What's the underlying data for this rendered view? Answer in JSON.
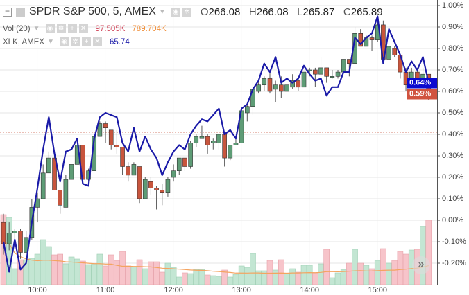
{
  "legend": {
    "symbol_title": "SPDR S&P 500, 5, AMEX",
    "open_label": "O",
    "open": "266.08",
    "high_label": "H",
    "high": "266.08",
    "low_label": "L",
    "low": "265.87",
    "close_label": "C",
    "close": "265.89",
    "volume_title": "Vol (20)",
    "volume_value": "97.505K",
    "volume_ma_value": "789.704K",
    "compare_title": "XLK, AMEX",
    "compare_value": "65.74"
  },
  "price_tags": {
    "compare": "0.64%",
    "main": "0.59%"
  },
  "colors": {
    "up": "#5e9c76",
    "down": "#c8553d",
    "vol_up": "#c3e6d3",
    "vol_down": "#f7c4ca",
    "compare": "#1a1aa8",
    "vol_ma": "#f4a460",
    "compare_tag": "#0a0ad0",
    "main_tag": "#d0533f",
    "prev_close": "#c8553d"
  },
  "chart_data": {
    "type": "candlestick",
    "yaxis_ticks": [
      "1.00%",
      "0.90%",
      "0.80%",
      "0.70%",
      "0.60%",
      "0.50%",
      "0.40%",
      "0.30%",
      "0.20%",
      "0.10%",
      "0.00%",
      "-0.10%",
      "-0.20%"
    ],
    "yaxis_tick_values": [
      1.0,
      0.9,
      0.8,
      0.7,
      0.6,
      0.5,
      0.4,
      0.3,
      0.2,
      0.1,
      0.0,
      -0.1,
      -0.2
    ],
    "xaxis_ticks": [
      "10:00",
      "11:00",
      "12:00",
      "13:00",
      "14:00",
      "15:00"
    ],
    "xaxis_tick_bar_index": [
      6,
      18,
      30,
      42,
      54,
      66
    ],
    "prev_close_pct": 0.41,
    "candles_ohlc_pct": [
      [
        -0.01,
        0.03,
        -0.16,
        -0.11
      ],
      [
        -0.11,
        -0.01,
        -0.14,
        -0.06
      ],
      [
        -0.06,
        -0.04,
        -0.09,
        -0.05
      ],
      [
        -0.05,
        -0.04,
        -0.18,
        -0.15
      ],
      [
        -0.15,
        -0.05,
        -0.15,
        -0.08
      ],
      [
        -0.08,
        0.1,
        -0.09,
        0.06
      ],
      [
        0.06,
        0.13,
        -0.01,
        0.1
      ],
      [
        0.1,
        0.26,
        0.1,
        0.22
      ],
      [
        0.22,
        0.32,
        0.22,
        0.29
      ],
      [
        0.29,
        0.3,
        0.14,
        0.14
      ],
      [
        0.14,
        0.14,
        0.03,
        0.07
      ],
      [
        0.06,
        0.21,
        0.06,
        0.19
      ],
      [
        0.19,
        0.26,
        0.19,
        0.26
      ],
      [
        0.26,
        0.35,
        0.26,
        0.35
      ],
      [
        0.35,
        0.35,
        0.19,
        0.19
      ],
      [
        0.19,
        0.24,
        0.18,
        0.23
      ],
      [
        0.23,
        0.39,
        0.23,
        0.39
      ],
      [
        0.39,
        0.46,
        0.39,
        0.45
      ],
      [
        0.45,
        0.46,
        0.36,
        0.43
      ],
      [
        0.42,
        0.42,
        0.33,
        0.35
      ],
      [
        0.35,
        0.42,
        0.31,
        0.34
      ],
      [
        0.34,
        0.34,
        0.21,
        0.25
      ],
      [
        0.25,
        0.27,
        0.18,
        0.21
      ],
      [
        0.21,
        0.27,
        0.21,
        0.26
      ],
      [
        0.25,
        0.25,
        0.08,
        0.1
      ],
      [
        0.1,
        0.2,
        0.1,
        0.19
      ],
      [
        0.18,
        0.2,
        0.12,
        0.15
      ],
      [
        0.15,
        0.16,
        0.05,
        0.14
      ],
      [
        0.14,
        0.17,
        0.07,
        0.13
      ],
      [
        0.13,
        0.2,
        0.11,
        0.19
      ],
      [
        0.2,
        0.26,
        0.18,
        0.23
      ],
      [
        0.23,
        0.29,
        0.21,
        0.29
      ],
      [
        0.29,
        0.29,
        0.23,
        0.25
      ],
      [
        0.25,
        0.37,
        0.24,
        0.36
      ],
      [
        0.36,
        0.4,
        0.34,
        0.39
      ],
      [
        0.38,
        0.44,
        0.38,
        0.39
      ],
      [
        0.39,
        0.4,
        0.31,
        0.35
      ],
      [
        0.36,
        0.38,
        0.33,
        0.37
      ],
      [
        0.36,
        0.4,
        0.33,
        0.4
      ],
      [
        0.4,
        0.4,
        0.25,
        0.29
      ],
      [
        0.29,
        0.35,
        0.28,
        0.35
      ],
      [
        0.35,
        0.39,
        0.35,
        0.36
      ],
      [
        0.36,
        0.51,
        0.36,
        0.51
      ],
      [
        0.5,
        0.54,
        0.46,
        0.53
      ],
      [
        0.53,
        0.66,
        0.49,
        0.61
      ],
      [
        0.6,
        0.65,
        0.59,
        0.63
      ],
      [
        0.63,
        0.67,
        0.6,
        0.66
      ],
      [
        0.66,
        0.69,
        0.59,
        0.6
      ],
      [
        0.61,
        0.65,
        0.55,
        0.63
      ],
      [
        0.63,
        0.67,
        0.57,
        0.6
      ],
      [
        0.6,
        0.64,
        0.58,
        0.63
      ],
      [
        0.62,
        0.68,
        0.61,
        0.65
      ],
      [
        0.65,
        0.66,
        0.6,
        0.62
      ],
      [
        0.62,
        0.69,
        0.62,
        0.69
      ],
      [
        0.7,
        0.71,
        0.67,
        0.7
      ],
      [
        0.7,
        0.71,
        0.62,
        0.68
      ],
      [
        0.68,
        0.76,
        0.65,
        0.71
      ],
      [
        0.71,
        0.71,
        0.64,
        0.67
      ],
      [
        0.67,
        0.7,
        0.66,
        0.67
      ],
      [
        0.67,
        0.7,
        0.66,
        0.69
      ],
      [
        0.69,
        0.75,
        0.69,
        0.75
      ],
      [
        0.75,
        0.75,
        0.67,
        0.73
      ],
      [
        0.73,
        0.9,
        0.73,
        0.87
      ],
      [
        0.87,
        0.89,
        0.81,
        0.81
      ],
      [
        0.81,
        0.86,
        0.81,
        0.85
      ],
      [
        0.85,
        0.86,
        0.79,
        0.84
      ],
      [
        0.84,
        0.95,
        0.83,
        0.91
      ],
      [
        0.91,
        0.93,
        0.75,
        0.75
      ],
      [
        0.75,
        0.81,
        0.75,
        0.81
      ],
      [
        0.8,
        0.81,
        0.76,
        0.77
      ],
      [
        0.77,
        0.77,
        0.66,
        0.69
      ],
      [
        0.69,
        0.71,
        0.6,
        0.63
      ],
      [
        0.63,
        0.71,
        0.62,
        0.69
      ],
      [
        0.69,
        0.71,
        0.62,
        0.64
      ],
      [
        0.64,
        0.71,
        0.57,
        0.68
      ],
      [
        0.68,
        0.68,
        0.56,
        0.59
      ]
    ],
    "compare_series_name": "XLK, AMEX",
    "compare_pct": [
      -0.1,
      -0.24,
      -0.09,
      -0.23,
      -0.2,
      -0.01,
      0.15,
      0.33,
      0.48,
      0.31,
      0.18,
      0.32,
      0.33,
      0.38,
      0.17,
      0.16,
      0.38,
      0.48,
      0.5,
      0.49,
      0.48,
      0.36,
      0.32,
      0.43,
      0.32,
      0.39,
      0.33,
      0.29,
      0.21,
      0.27,
      0.32,
      0.35,
      0.33,
      0.4,
      0.44,
      0.47,
      0.46,
      0.49,
      0.52,
      0.4,
      0.42,
      0.38,
      0.52,
      0.54,
      0.61,
      0.65,
      0.73,
      0.69,
      0.76,
      0.64,
      0.66,
      0.64,
      0.66,
      0.72,
      0.68,
      0.65,
      0.66,
      0.58,
      0.62,
      0.62,
      0.69,
      0.69,
      0.85,
      0.82,
      0.85,
      0.87,
      0.95,
      0.73,
      0.89,
      0.83,
      0.77,
      0.69,
      0.74,
      0.7,
      0.76,
      0.64
    ],
    "volume_k": [
      2020,
      1940,
      460,
      720,
      720,
      760,
      880,
      1300,
      1100,
      860,
      880,
      600,
      800,
      740,
      680,
      580,
      600,
      880,
      540,
      860,
      700,
      960,
      540,
      520,
      720,
      460,
      660,
      660,
      360,
      620,
      500,
      220,
      340,
      320,
      440,
      440,
      280,
      260,
      240,
      420,
      220,
      300,
      540,
      500,
      900,
      400,
      400,
      700,
      420,
      720,
      320,
      460,
      360,
      560,
      560,
      340,
      600,
      1020,
      200,
      340,
      440,
      620,
      1020,
      620,
      560,
      460,
      700,
      1040,
      620,
      700,
      960,
      880,
      1000,
      1020,
      1680,
      1860
    ],
    "volume_ma_period": 20
  },
  "scroll_button": "»"
}
